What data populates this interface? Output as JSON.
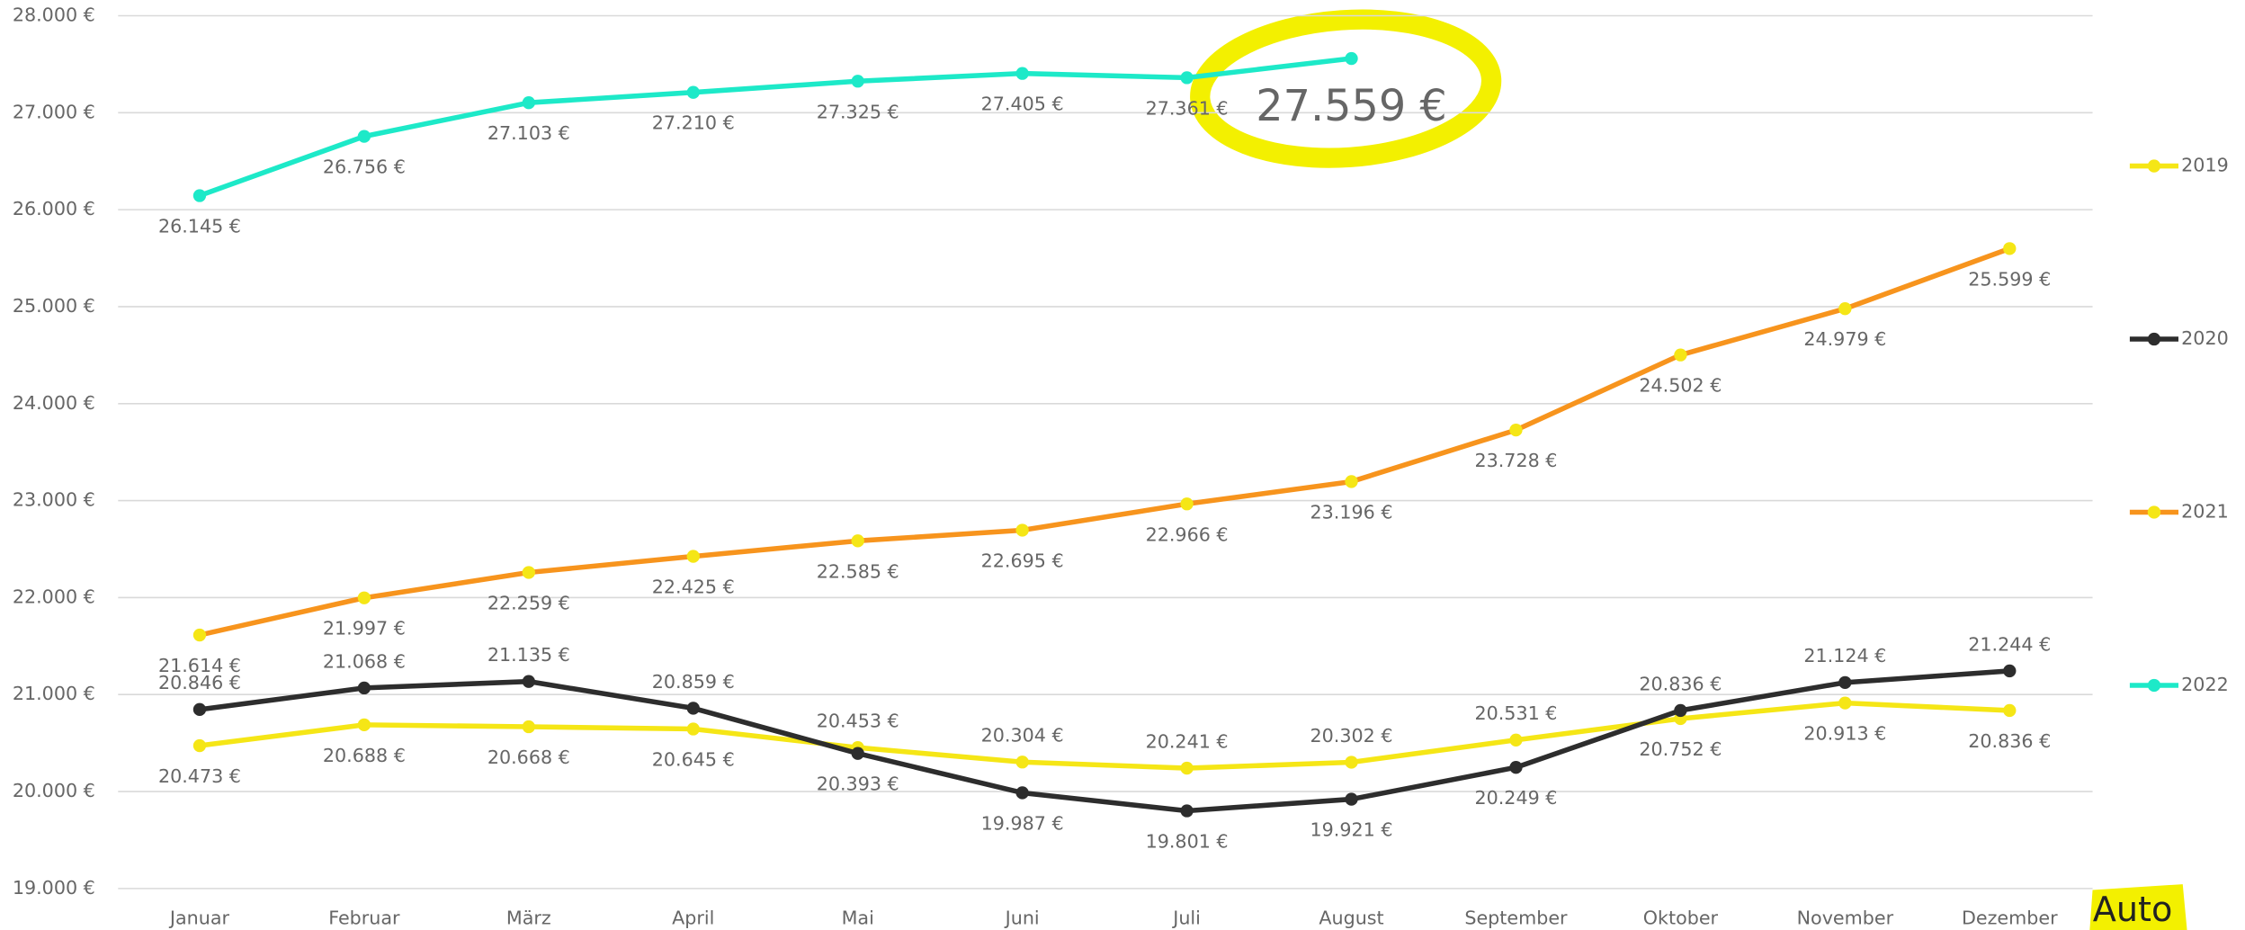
{
  "chart_data": {
    "type": "line",
    "categories": [
      "Januar",
      "Februar",
      "März",
      "April",
      "Mai",
      "Juni",
      "Juli",
      "August",
      "September",
      "Oktober",
      "November",
      "Dezember"
    ],
    "ylim": [
      19000,
      28000
    ],
    "yticks": [
      {
        "value": 19000,
        "label": "19.000 €"
      },
      {
        "value": 20000,
        "label": "20.000 €"
      },
      {
        "value": 21000,
        "label": "21.000 €"
      },
      {
        "value": 22000,
        "label": "22.000 €"
      },
      {
        "value": 23000,
        "label": "23.000 €"
      },
      {
        "value": 24000,
        "label": "24.000 €"
      },
      {
        "value": 25000,
        "label": "25.000 €"
      },
      {
        "value": 26000,
        "label": "26.000 €"
      },
      {
        "value": 27000,
        "label": "27.000 €"
      },
      {
        "value": 28000,
        "label": "28.000 €"
      }
    ],
    "grid": true,
    "legend": "right",
    "series": [
      {
        "name": "2019",
        "color": "#f5e616",
        "marker_color": "#f5e616",
        "values": [
          20473,
          20688,
          20668,
          20645,
          20453,
          20304,
          20241,
          20302,
          20531,
          20752,
          20913,
          20836
        ],
        "value_labels": [
          "20.473 €",
          "20.688 €",
          "20.668 €",
          "20.645 €",
          "20.453 €",
          "20.304 €",
          "20.241 €",
          "20.302 €",
          "20.531 €",
          "20.752 €",
          "20.913 €",
          "20.836 €"
        ]
      },
      {
        "name": "2020",
        "color": "#2d2d2d",
        "marker_color": "#2d2d2d",
        "values": [
          20846,
          21068,
          21135,
          20859,
          20393,
          19987,
          19801,
          19921,
          20249,
          20836,
          21124,
          21244
        ],
        "value_labels": [
          "20.846 €",
          "21.068 €",
          "21.135 €",
          "20.859 €",
          "20.393 €",
          "19.987 €",
          "19.801 €",
          "19.921 €",
          "20.249 €",
          "20.836 €",
          "21.124 €",
          "21.244 €"
        ]
      },
      {
        "name": "2021",
        "color": "#f7941d",
        "marker_color": "#f5e616",
        "values": [
          21614,
          21997,
          22259,
          22425,
          22585,
          22695,
          22966,
          23196,
          23728,
          24502,
          24979,
          25599
        ],
        "value_labels": [
          "21.614 €",
          "21.997 €",
          "22.259 €",
          "22.425 €",
          "22.585 €",
          "22.695 €",
          "22.966 €",
          "23.196 €",
          "23.728 €",
          "24.502 €",
          "24.979 €",
          "25.599 €"
        ]
      },
      {
        "name": "2022",
        "color": "#1de9c8",
        "marker_color": "#1de9c8",
        "values": [
          26145,
          26756,
          27103,
          27210,
          27325,
          27405,
          27361,
          27559,
          null,
          null,
          null,
          null
        ],
        "value_labels": [
          "26.145 €",
          "26.756 €",
          "27.103 €",
          "27.210 €",
          "27.325 €",
          "27.405 €",
          "27.361 €",
          "27.559 €",
          null,
          null,
          null,
          null
        ]
      }
    ]
  },
  "badge": "Auto"
}
